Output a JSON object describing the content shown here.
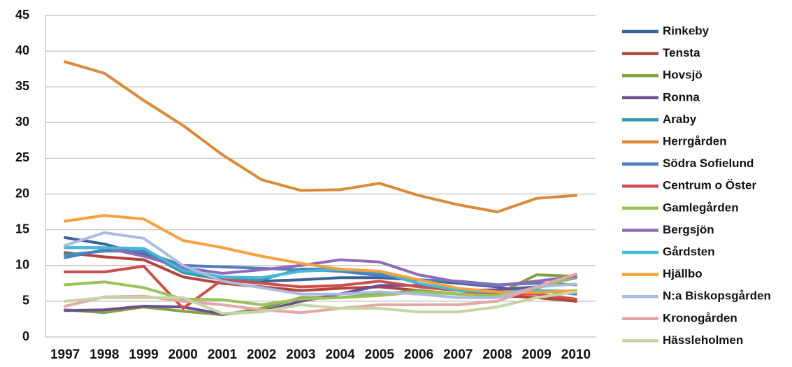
{
  "chart_data": {
    "type": "line",
    "categories": [
      "1997",
      "1998",
      "1999",
      "2000",
      "2001",
      "2002",
      "2003",
      "2004",
      "2005",
      "2006",
      "2007",
      "2008",
      "2009",
      "2010"
    ],
    "ylim": [
      0,
      45
    ],
    "yticks": [
      0,
      5,
      10,
      15,
      20,
      25,
      30,
      35,
      40,
      45
    ],
    "grid": true,
    "legend": "right",
    "series": [
      {
        "name": "Rinkeby",
        "color": "#3a6399",
        "values": [
          13.9,
          13,
          11.5,
          9.5,
          8,
          7.8,
          8,
          8.3,
          8.3,
          8,
          7.5,
          7,
          6,
          5
        ]
      },
      {
        "name": "Tensta",
        "color": "#b5443f",
        "values": [
          11.8,
          11.2,
          10.8,
          8.4,
          7.5,
          7,
          6.5,
          6.8,
          7,
          6.5,
          6,
          5.8,
          5.5,
          5
        ]
      },
      {
        "name": "Hovsjö",
        "color": "#82a345",
        "values": [
          3.8,
          3.4,
          4.2,
          3.6,
          3.1,
          4,
          5.5,
          5.5,
          6,
          6.5,
          6,
          6,
          8.7,
          8.5
        ]
      },
      {
        "name": "Ronna",
        "color": "#6c4f91",
        "values": [
          3.7,
          3.8,
          4.3,
          4.2,
          3.2,
          3.6,
          5,
          6,
          7.2,
          7.2,
          6.5,
          6.6,
          7,
          8.3
        ]
      },
      {
        "name": "Araby",
        "color": "#3b97ad",
        "values": [
          11.5,
          12,
          12,
          9,
          8,
          8,
          9.5,
          9.5,
          9,
          7.5,
          6.5,
          6,
          6.5,
          6
        ]
      },
      {
        "name": "Herrgården",
        "color": "#d98a3a",
        "values": [
          38.5,
          36.9,
          33.1,
          29.6,
          25.5,
          22,
          20.5,
          20.6,
          21.5,
          19.8,
          18.5,
          17.5,
          19.4,
          19.8
        ]
      },
      {
        "name": "Södra Sofielund",
        "color": "#4d7fc0",
        "values": [
          11.1,
          12.2,
          11.9,
          10,
          9.8,
          9.6,
          9.4,
          9.2,
          8.6,
          8,
          7.8,
          7.3,
          7.5,
          7.3
        ]
      },
      {
        "name": "Centrum o Öster",
        "color": "#cd4e4a",
        "values": [
          9.1,
          9.1,
          9.9,
          4,
          8,
          7.5,
          7,
          7.2,
          7.8,
          7,
          6.5,
          6,
          6,
          5.3
        ]
      },
      {
        "name": "Gamlegården",
        "color": "#9bc256",
        "values": [
          7.3,
          7.7,
          6.9,
          5.3,
          5.2,
          4.5,
          5.3,
          5.5,
          5.8,
          6.3,
          6,
          5.8,
          6.8,
          8.4
        ]
      },
      {
        "name": "Bergsjön",
        "color": "#8d6bb8",
        "values": [
          12.5,
          12.5,
          11.3,
          9.7,
          8.9,
          9.4,
          10,
          10.8,
          10.5,
          8.7,
          7.7,
          7.2,
          7.8,
          8.5
        ]
      },
      {
        "name": "Gårdsten",
        "color": "#47b8d6",
        "values": [
          12.5,
          12.5,
          12.4,
          9.3,
          8.4,
          8.3,
          9.2,
          9.4,
          9.2,
          7.5,
          6.5,
          6.3,
          6.5,
          6.4
        ]
      },
      {
        "name": "Hjällbo",
        "color": "#f7a03e",
        "values": [
          16.2,
          17,
          16.5,
          13.5,
          12.5,
          11.3,
          10.3,
          9.5,
          9.2,
          8,
          6.8,
          6.3,
          6.2,
          6.5
        ]
      },
      {
        "name": "N:a Biskopsgården",
        "color": "#a9bbdf",
        "values": [
          12.8,
          14.6,
          13.8,
          10,
          7.8,
          6.9,
          6,
          6,
          6.3,
          6,
          5.5,
          5.5,
          7,
          7.4
        ]
      },
      {
        "name": "Kronogården",
        "color": "#e0a9a7",
        "values": [
          4.3,
          5.6,
          5.7,
          5,
          4.5,
          3.8,
          3.4,
          4,
          4.5,
          4.5,
          4.5,
          5,
          7,
          8.8
        ]
      },
      {
        "name": "Hässleholmen",
        "color": "#c5d6a4",
        "values": [
          5,
          5.5,
          5.5,
          5.5,
          3.3,
          3.5,
          4.5,
          4,
          4,
          3.5,
          3.5,
          4.2,
          5.5,
          6.3
        ]
      }
    ]
  }
}
